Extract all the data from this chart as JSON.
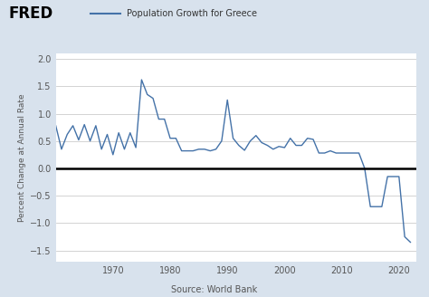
{
  "title": "Population Growth for Greece",
  "ylabel": "Percent Change at Annual Rate",
  "source": "Source: World Bank",
  "background_color": "#d8e2ed",
  "plot_bg_color": "#ffffff",
  "line_color": "#4472a8",
  "zero_line_color": "#000000",
  "ylim": [
    -1.7,
    2.1
  ],
  "yticks": [
    -1.5,
    -1.0,
    -0.5,
    0.0,
    0.5,
    1.0,
    1.5,
    2.0
  ],
  "xlim": [
    1960,
    2023
  ],
  "xticks": [
    1970,
    1980,
    1990,
    2000,
    2010,
    2020
  ],
  "years": [
    1960,
    1961,
    1962,
    1963,
    1964,
    1965,
    1966,
    1967,
    1968,
    1969,
    1970,
    1971,
    1972,
    1973,
    1974,
    1975,
    1976,
    1977,
    1978,
    1979,
    1980,
    1981,
    1982,
    1983,
    1984,
    1985,
    1986,
    1987,
    1988,
    1989,
    1990,
    1991,
    1992,
    1993,
    1994,
    1995,
    1996,
    1997,
    1998,
    1999,
    2000,
    2001,
    2002,
    2003,
    2004,
    2005,
    2006,
    2007,
    2008,
    2009,
    2010,
    2011,
    2012,
    2013,
    2014,
    2015,
    2016,
    2017,
    2018,
    2019,
    2020,
    2021,
    2022
  ],
  "values": [
    0.78,
    0.35,
    0.62,
    0.78,
    0.52,
    0.8,
    0.5,
    0.78,
    0.35,
    0.62,
    0.25,
    0.65,
    0.35,
    0.65,
    0.38,
    1.62,
    1.35,
    1.28,
    0.9,
    0.9,
    0.55,
    0.55,
    0.32,
    0.32,
    0.32,
    0.35,
    0.35,
    0.32,
    0.35,
    0.5,
    1.25,
    0.55,
    0.42,
    0.33,
    0.5,
    0.6,
    0.47,
    0.42,
    0.35,
    0.4,
    0.38,
    0.55,
    0.42,
    0.42,
    0.55,
    0.53,
    0.28,
    0.28,
    0.32,
    0.28,
    0.28,
    0.28,
    0.28,
    0.28,
    0.0,
    -0.7,
    -0.7,
    -0.7,
    -0.15,
    -0.15,
    -0.15,
    -1.25,
    -1.35
  ]
}
